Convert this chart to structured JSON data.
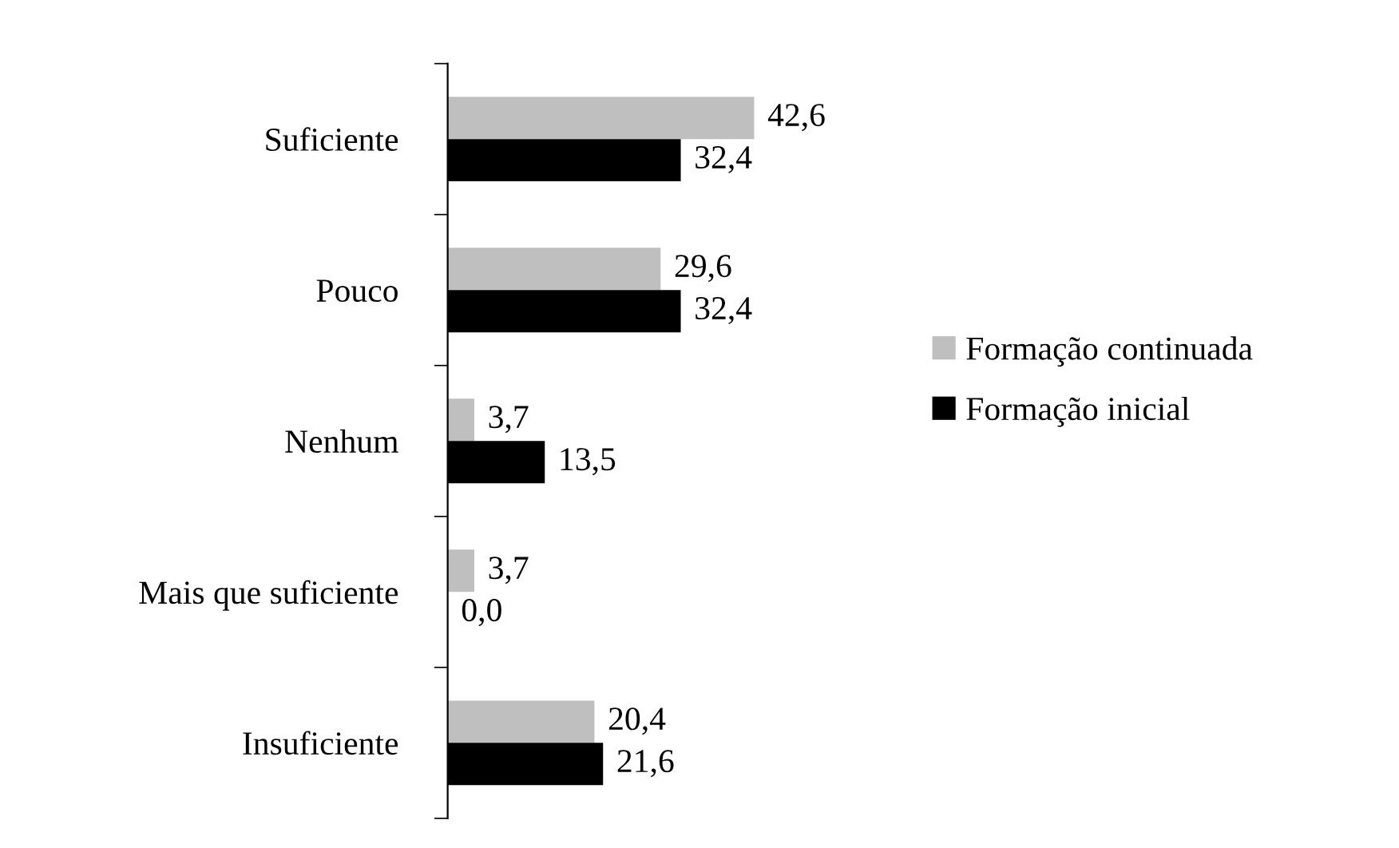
{
  "chart_data": {
    "type": "bar",
    "orientation": "horizontal",
    "categories": [
      "Suficiente",
      "Pouco",
      "Nenhum",
      "Mais que suficiente",
      "Insuficiente"
    ],
    "series": [
      {
        "name": "Formação continuada",
        "color": "#bfbfbf",
        "values": [
          42.6,
          29.6,
          3.7,
          3.7,
          20.4
        ],
        "value_labels": [
          "42,6",
          "29,6",
          "3,7",
          "3,7",
          "20,4"
        ]
      },
      {
        "name": "Formação inicial",
        "color": "#000000",
        "values": [
          32.4,
          32.4,
          13.5,
          0.0,
          21.6
        ],
        "value_labels": [
          "32,4",
          "32,4",
          "13,5",
          "0,0",
          "21,6"
        ]
      }
    ],
    "legend": "right"
  }
}
